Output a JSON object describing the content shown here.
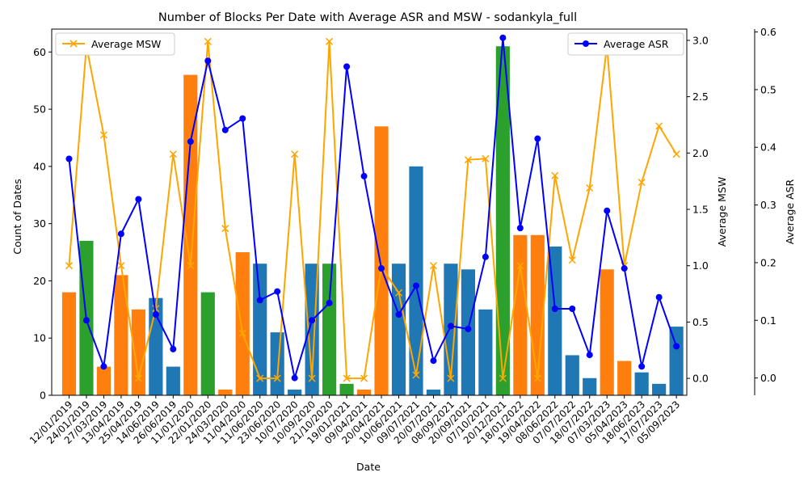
{
  "chart_data": {
    "type": "bar",
    "title": "Number of Blocks Per Date with Average ASR and MSW - sodankyla_full",
    "xlabel": "Date",
    "ylabel": "Count of Dates",
    "y2label": "Average MSW",
    "y3label": "Average ASR",
    "ylim": [
      0,
      64
    ],
    "y2lim": [
      -0.15,
      3.1
    ],
    "y3lim": [
      -0.03,
      0.605
    ],
    "yticks": [
      0,
      10,
      20,
      30,
      40,
      50,
      60
    ],
    "y2ticks": [
      0.0,
      0.5,
      1.0,
      1.5,
      2.0,
      2.5,
      3.0
    ],
    "y3ticks": [
      0.0,
      0.1,
      0.2,
      0.3,
      0.4,
      0.5,
      0.6
    ],
    "y2tick_labels": [
      "0.0",
      "0.5",
      "1.0",
      "1.5",
      "2.0",
      "2.5",
      "3.0"
    ],
    "y3tick_labels": [
      "0.0",
      "0.1",
      "0.2",
      "0.3",
      "0.4",
      "0.5",
      "0.6"
    ],
    "bar_colors": {
      "blue": "#1f77b4",
      "orange": "#ff7f0e",
      "green": "#2ca02c"
    },
    "categories": [
      "12/01/2019",
      "24/01/2019",
      "27/03/2019",
      "13/04/2019",
      "25/04/2019",
      "14/06/2019",
      "26/06/2019",
      "11/01/2020",
      "22/01/2020",
      "24/03/2020",
      "11/04/2020",
      "11/06/2020",
      "23/06/2020",
      "10/07/2020",
      "10/09/2020",
      "21/10/2020",
      "19/01/2021",
      "09/04/2021",
      "20/04/2021",
      "10/06/2021",
      "09/07/2021",
      "20/07/2021",
      "08/09/2021",
      "20/09/2021",
      "07/10/2021",
      "20/12/2021",
      "18/01/2022",
      "19/04/2022",
      "08/06/2022",
      "07/07/2022",
      "18/07/2022",
      "07/03/2023",
      "05/04/2023",
      "18/06/2023",
      "17/07/2023",
      "05/09/2023"
    ],
    "counts": [
      18,
      27,
      5,
      21,
      15,
      17,
      5,
      56,
      18,
      1,
      25,
      23,
      11,
      1,
      23,
      23,
      2,
      1,
      47,
      23,
      40,
      1,
      23,
      22,
      15,
      61,
      28,
      28,
      26,
      7,
      3,
      22,
      6,
      4,
      2,
      12
    ],
    "bar_color_keys": [
      "orange",
      "green",
      "orange",
      "orange",
      "orange",
      "blue",
      "blue",
      "orange",
      "green",
      "orange",
      "orange",
      "blue",
      "blue",
      "blue",
      "blue",
      "green",
      "green",
      "orange",
      "orange",
      "blue",
      "blue",
      "blue",
      "blue",
      "blue",
      "blue",
      "green",
      "orange",
      "orange",
      "blue",
      "blue",
      "blue",
      "orange",
      "orange",
      "blue",
      "blue",
      "blue"
    ],
    "series": [
      {
        "name": "Average MSW",
        "color": "#ffa500",
        "marker": "x",
        "axis": "y2",
        "values": [
          1.0,
          2.95,
          2.16,
          1.0,
          0.0,
          0.62,
          1.99,
          1.0,
          2.99,
          1.33,
          0.4,
          0.0,
          0.0,
          1.99,
          0.0,
          2.99,
          0.0,
          0.0,
          0.99,
          0.76,
          0.03,
          1.0,
          0.0,
          1.94,
          1.95,
          0.0,
          1.0,
          0.0,
          1.8,
          1.05,
          1.69,
          2.95,
          1.0,
          1.74,
          2.24,
          1.99
        ]
      },
      {
        "name": "Average ASR",
        "color": "#0000ff",
        "marker": "o",
        "axis": "y3",
        "values": [
          0.38,
          0.1,
          0.02,
          0.25,
          0.31,
          0.11,
          0.05,
          0.41,
          0.55,
          0.43,
          0.45,
          0.135,
          0.15,
          0.0,
          0.1,
          0.13,
          0.54,
          0.35,
          0.19,
          0.11,
          0.16,
          0.03,
          0.09,
          0.085,
          0.21,
          0.59,
          0.26,
          0.415,
          0.12,
          0.12,
          0.04,
          0.29,
          0.19,
          0.02,
          0.14,
          0.055
        ]
      }
    ],
    "legends": {
      "left": "top-left",
      "right": "top-right"
    }
  }
}
